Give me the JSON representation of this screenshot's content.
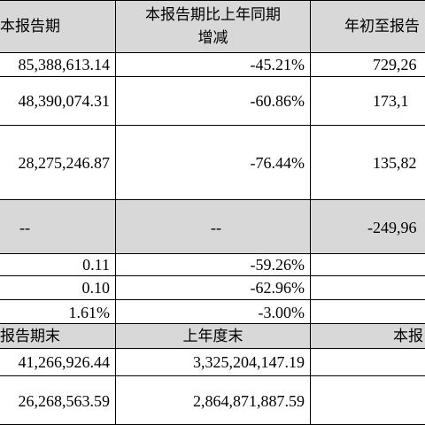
{
  "header": {
    "col1": "本报告期",
    "col2_line1": "本报告期比上年同期",
    "col2_line2": "增减",
    "col3": "年初至报告"
  },
  "rows": [
    {
      "c1": "85,388,613.14",
      "c2": "-45.21%",
      "c3": "729,26"
    },
    {
      "c1": "48,390,074.31",
      "c2": "-60.86%",
      "c3": "173,1"
    },
    {
      "c1": "28,275,246.87",
      "c2": "-76.44%",
      "c3": "135,82"
    },
    {
      "c1": "--",
      "c2": "--",
      "c3": "-249,96"
    },
    {
      "c1": "0.11",
      "c2": "-59.26%",
      "c3": ""
    },
    {
      "c1": "0.10",
      "c2": "-62.96%",
      "c3": ""
    },
    {
      "c1": "1.61%",
      "c2": "-3.00%",
      "c3": ""
    }
  ],
  "subheader": {
    "col1": "报告期末",
    "col2": "上年度末",
    "col3": "本报"
  },
  "bottom_rows": [
    {
      "c1": "41,266,926.44",
      "c2": "3,325,204,147.19",
      "c3": ""
    },
    {
      "c1": "26,268,563.59",
      "c2": "2,864,871,887.59",
      "c3": ""
    }
  ]
}
